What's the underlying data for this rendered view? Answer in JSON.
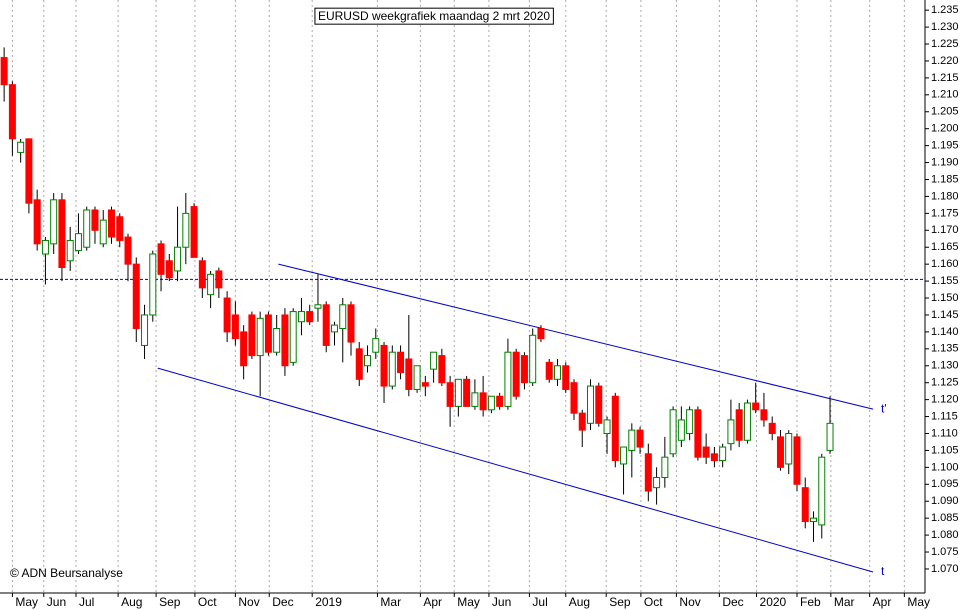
{
  "chart_data": {
    "type": "candlestick",
    "title": "EURUSD  weekgrafiek maandag 2 mrt 2020",
    "copyright": "© ADN Beursanalyse",
    "open": [
      1.221,
      1.213,
      1.193,
      1.197,
      1.179,
      1.163,
      1.166,
      1.179,
      1.161,
      1.164,
      1.165,
      1.176,
      1.166,
      1.176,
      1.174,
      1.168,
      1.16,
      1.136,
      1.145,
      1.166,
      1.161,
      1.158,
      1.165,
      1.177,
      1.161,
      1.151,
      1.158,
      1.15,
      1.145,
      1.14,
      1.145,
      1.133,
      1.145,
      1.134,
      1.145,
      1.131,
      1.143,
      1.146,
      1.147,
      1.148,
      1.14,
      1.141,
      1.148,
      1.135,
      1.13,
      1.134,
      1.136,
      1.124,
      1.134,
      1.132,
      1.123,
      1.125,
      1.129,
      1.133,
      1.125,
      1.118,
      1.126,
      1.118,
      1.122,
      1.117,
      1.121,
      1.118,
      1.134,
      1.133,
      1.125,
      1.141,
      1.131,
      1.126,
      1.13,
      1.125,
      1.116,
      1.113,
      1.124,
      1.11,
      1.121,
      1.101,
      1.105,
      1.111,
      1.104,
      1.094,
      1.097,
      1.104,
      1.108,
      1.11,
      1.117,
      1.106,
      1.104,
      1.102,
      1.107,
      1.117,
      1.108,
      1.119,
      1.117,
      1.113,
      1.109,
      1.101,
      1.109,
      1.094,
      1.084,
      1.083,
      1.105
    ],
    "high": [
      1.224,
      1.214,
      1.197,
      1.197,
      1.182,
      1.168,
      1.181,
      1.181,
      1.171,
      1.175,
      1.177,
      1.177,
      1.176,
      1.177,
      1.175,
      1.169,
      1.162,
      1.148,
      1.164,
      1.167,
      1.163,
      1.177,
      1.181,
      1.178,
      1.162,
      1.158,
      1.159,
      1.152,
      1.149,
      1.142,
      1.146,
      1.146,
      1.146,
      1.145,
      1.147,
      1.147,
      1.15,
      1.148,
      1.157,
      1.149,
      1.143,
      1.15,
      1.149,
      1.137,
      1.136,
      1.141,
      1.137,
      1.136,
      1.136,
      1.145,
      1.13,
      1.127,
      1.134,
      1.135,
      1.127,
      1.126,
      1.127,
      1.126,
      1.127,
      1.121,
      1.122,
      1.138,
      1.135,
      1.134,
      1.141,
      1.142,
      1.132,
      1.132,
      1.131,
      1.126,
      1.117,
      1.126,
      1.125,
      1.115,
      1.122,
      1.106,
      1.113,
      1.112,
      1.107,
      1.1,
      1.109,
      1.118,
      1.118,
      1.118,
      1.118,
      1.11,
      1.106,
      1.107,
      1.12,
      1.119,
      1.12,
      1.125,
      1.122,
      1.115,
      1.111,
      1.111,
      1.11,
      1.097,
      1.087,
      1.104,
      1.121
    ],
    "low": [
      1.208,
      1.192,
      1.19,
      1.175,
      1.164,
      1.154,
      1.163,
      1.155,
      1.158,
      1.163,
      1.164,
      1.166,
      1.165,
      1.166,
      1.165,
      1.155,
      1.137,
      1.132,
      1.143,
      1.152,
      1.155,
      1.155,
      1.16,
      1.162,
      1.15,
      1.147,
      1.15,
      1.137,
      1.136,
      1.126,
      1.132,
      1.121,
      1.133,
      1.133,
      1.127,
      1.13,
      1.139,
      1.142,
      1.143,
      1.134,
      1.136,
      1.131,
      1.133,
      1.124,
      1.128,
      1.132,
      1.119,
      1.123,
      1.126,
      1.121,
      1.122,
      1.121,
      1.125,
      1.124,
      1.112,
      1.115,
      1.118,
      1.117,
      1.115,
      1.116,
      1.117,
      1.117,
      1.12,
      1.123,
      1.124,
      1.137,
      1.125,
      1.124,
      1.122,
      1.114,
      1.106,
      1.111,
      1.112,
      1.104,
      1.1,
      1.092,
      1.097,
      1.104,
      1.09,
      1.089,
      1.094,
      1.103,
      1.106,
      1.108,
      1.102,
      1.101,
      1.1,
      1.1,
      1.105,
      1.106,
      1.107,
      1.116,
      1.112,
      1.108,
      1.099,
      1.098,
      1.093,
      1.082,
      1.078,
      1.079,
      1.104
    ],
    "close": [
      1.213,
      1.197,
      1.196,
      1.178,
      1.166,
      1.167,
      1.179,
      1.159,
      1.167,
      1.169,
      1.176,
      1.17,
      1.173,
      1.168,
      1.167,
      1.16,
      1.141,
      1.145,
      1.163,
      1.157,
      1.156,
      1.165,
      1.175,
      1.162,
      1.153,
      1.157,
      1.153,
      1.14,
      1.138,
      1.13,
      1.133,
      1.144,
      1.134,
      1.141,
      1.13,
      1.146,
      1.146,
      1.143,
      1.148,
      1.136,
      1.142,
      1.148,
      1.137,
      1.126,
      1.133,
      1.138,
      1.124,
      1.134,
      1.128,
      1.123,
      1.13,
      1.124,
      1.134,
      1.125,
      1.118,
      1.126,
      1.118,
      1.122,
      1.117,
      1.121,
      1.118,
      1.134,
      1.121,
      1.125,
      1.139,
      1.138,
      1.126,
      1.13,
      1.123,
      1.116,
      1.111,
      1.124,
      1.113,
      1.114,
      1.102,
      1.106,
      1.111,
      1.106,
      1.093,
      1.097,
      1.103,
      1.117,
      1.114,
      1.117,
      1.103,
      1.103,
      1.102,
      1.106,
      1.114,
      1.108,
      1.119,
      1.117,
      1.114,
      1.11,
      1.1,
      1.11,
      1.095,
      1.084,
      1.085,
      1.103,
      1.113
    ],
    "up_color": "#008000",
    "down_color": "#ff0000",
    "xlim": [
      -0.5,
      111.5
    ],
    "xticks": [
      {
        "value": 1,
        "label": "May"
      },
      {
        "value": 4.8,
        "label": "Jun"
      },
      {
        "value": 8.7,
        "label": "Jul"
      },
      {
        "value": 13.8,
        "label": "Aug"
      },
      {
        "value": 18.4,
        "label": "Sep"
      },
      {
        "value": 23.1,
        "label": "Oct"
      },
      {
        "value": 28,
        "label": "Nov"
      },
      {
        "value": 32.1,
        "label": "Dec"
      },
      {
        "value": 37.3,
        "label": "2019"
      },
      {
        "value": 45.2,
        "label": "Mar"
      },
      {
        "value": 50.4,
        "label": "Apr"
      },
      {
        "value": 54.5,
        "label": "May"
      },
      {
        "value": 58.7,
        "label": "Jun"
      },
      {
        "value": 63.6,
        "label": "Jul"
      },
      {
        "value": 68,
        "label": "Aug"
      },
      {
        "value": 72.9,
        "label": "Sep"
      },
      {
        "value": 77.1,
        "label": "Oct"
      },
      {
        "value": 81.4,
        "label": "Nov"
      },
      {
        "value": 86.6,
        "label": "Dec"
      },
      {
        "value": 91.1,
        "label": "2020"
      },
      {
        "value": 96,
        "label": "Feb"
      },
      {
        "value": 100.1,
        "label": "Mar"
      },
      {
        "value": 104.8,
        "label": "Apr"
      },
      {
        "value": 109,
        "label": "May"
      }
    ],
    "ylim": [
      1.0629,
      1.238
    ],
    "yticks": [
      {
        "value": 1.07,
        "label": "1.070"
      },
      1.075,
      {
        "value": 1.08,
        "label": "1.080"
      },
      1.085,
      {
        "value": 1.09,
        "label": "1.090"
      },
      1.095,
      {
        "value": 1.1,
        "label": "1.100"
      },
      1.105,
      {
        "value": 1.11,
        "label": "1.110"
      },
      1.115,
      {
        "value": 1.12,
        "label": "1.120"
      },
      1.125,
      {
        "value": 1.13,
        "label": "1.130"
      },
      1.135,
      {
        "value": 1.14,
        "label": "1.140"
      },
      1.145,
      {
        "value": 1.15,
        "label": "1.150"
      },
      1.155,
      {
        "value": 1.16,
        "label": "1.160"
      },
      1.165,
      {
        "value": 1.17,
        "label": "1.170"
      },
      1.175,
      {
        "value": 1.18,
        "label": "1.180"
      },
      1.185,
      {
        "value": 1.19,
        "label": "1.190"
      },
      1.195,
      {
        "value": 1.2,
        "label": "1.200"
      },
      1.205,
      {
        "value": 1.21,
        "label": "1.210"
      },
      1.215,
      {
        "value": 1.22,
        "label": "1.220"
      },
      1.225,
      {
        "value": 1.23,
        "label": "1.230"
      },
      1.235
    ],
    "hline": {
      "value": 1.1555,
      "color": "#0000aa"
    },
    "trendlines": [
      {
        "label": "t'",
        "color": "#0000cc",
        "x": [
          33.2,
          105.2
        ],
        "y": [
          1.16,
          1.1172
        ]
      },
      {
        "label": "t",
        "color": "#0000cc",
        "x": [
          18.6,
          105.2
        ],
        "y": [
          1.1293,
          1.0691
        ]
      }
    ]
  }
}
